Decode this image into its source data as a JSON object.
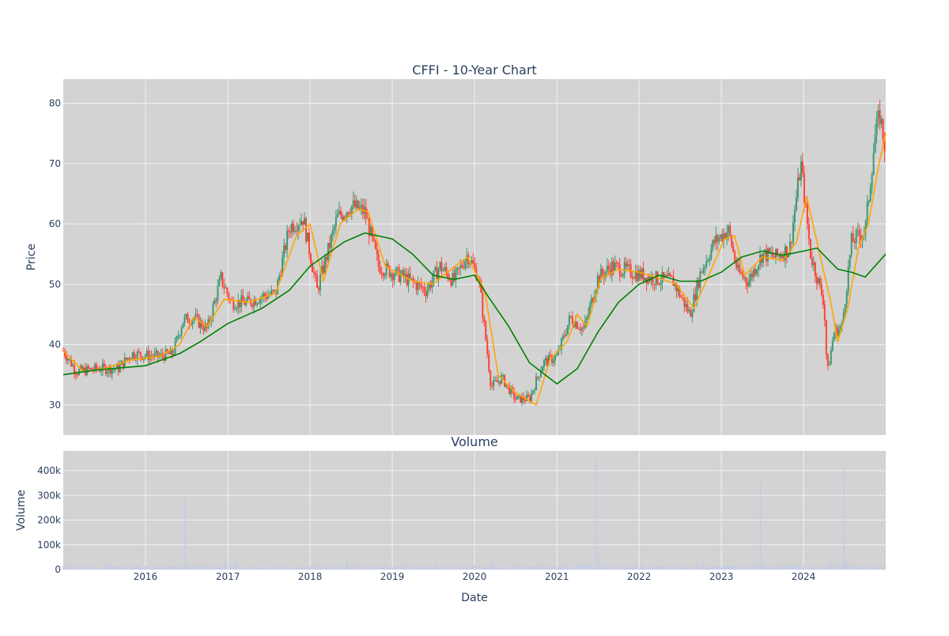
{
  "colors": {
    "plot_bg": "#d3d3d3",
    "grid": "#eef1f6",
    "up": "#3d9970",
    "down": "#ff4136",
    "sma_short": "#ffa500",
    "sma_long": "#008000",
    "volume": "#c5cbe6",
    "text": "#2a3f5f"
  },
  "chart_data": [
    {
      "id": "price",
      "type": "candlestick",
      "title": "CFFI - 10-Year Chart",
      "xlabel": "",
      "ylabel": "Price",
      "xlim": [
        "2015-01-01",
        "2024-12-31"
      ],
      "ylim": [
        25,
        84
      ],
      "yticks": [
        30,
        40,
        50,
        60,
        70,
        80
      ],
      "grid": true,
      "legend": "none",
      "price_path": [
        [
          "2015-01-01",
          39
        ],
        [
          "2015-03-01",
          35.5
        ],
        [
          "2015-06-01",
          36
        ],
        [
          "2015-09-01",
          36
        ],
        [
          "2015-11-01",
          38.5
        ],
        [
          "2016-03-01",
          38
        ],
        [
          "2016-05-01",
          38.5
        ],
        [
          "2016-06-15",
          44
        ],
        [
          "2016-08-01",
          44.5
        ],
        [
          "2016-10-01",
          42.5
        ],
        [
          "2016-12-01",
          51
        ],
        [
          "2017-01-15",
          47
        ],
        [
          "2017-04-01",
          47
        ],
        [
          "2017-06-01",
          48
        ],
        [
          "2017-08-01",
          48.5
        ],
        [
          "2017-10-01",
          59.5
        ],
        [
          "2017-12-01",
          61
        ],
        [
          "2018-02-01",
          49
        ],
        [
          "2018-05-01",
          61
        ],
        [
          "2018-07-01",
          63
        ],
        [
          "2018-09-01",
          62
        ],
        [
          "2018-11-01",
          53
        ],
        [
          "2019-03-01",
          51
        ],
        [
          "2019-06-01",
          49
        ],
        [
          "2019-08-01",
          53
        ],
        [
          "2019-10-01",
          50.5
        ],
        [
          "2019-12-01",
          55
        ],
        [
          "2020-01-20",
          51
        ],
        [
          "2020-03-15",
          33
        ],
        [
          "2020-05-01",
          34.5
        ],
        [
          "2020-07-01",
          31
        ],
        [
          "2020-09-01",
          31
        ],
        [
          "2020-11-01",
          37
        ],
        [
          "2021-01-01",
          38
        ],
        [
          "2021-03-01",
          44.5
        ],
        [
          "2021-05-01",
          42.5
        ],
        [
          "2021-07-01",
          51
        ],
        [
          "2021-09-01",
          53
        ],
        [
          "2021-12-01",
          52
        ],
        [
          "2022-03-01",
          51
        ],
        [
          "2022-06-01",
          50.5
        ],
        [
          "2022-08-15",
          45
        ],
        [
          "2022-10-01",
          52
        ],
        [
          "2022-12-01",
          57
        ],
        [
          "2023-02-01",
          59
        ],
        [
          "2023-03-15",
          52
        ],
        [
          "2023-05-01",
          50.5
        ],
        [
          "2023-07-01",
          55
        ],
        [
          "2023-09-01",
          54.5
        ],
        [
          "2023-11-01",
          56
        ],
        [
          "2023-12-20",
          70
        ],
        [
          "2024-02-01",
          55
        ],
        [
          "2024-04-01",
          47
        ],
        [
          "2024-04-15",
          35
        ],
        [
          "2024-05-15",
          42
        ],
        [
          "2024-06-20",
          43
        ],
        [
          "2024-08-01",
          57
        ],
        [
          "2024-10-01",
          59
        ],
        [
          "2024-11-15",
          75
        ],
        [
          "2024-12-05",
          78
        ],
        [
          "2024-12-31",
          72
        ]
      ],
      "sma_short": [
        [
          "2015-01-01",
          39
        ],
        [
          "2015-04-01",
          35.5
        ],
        [
          "2015-07-01",
          36
        ],
        [
          "2015-11-01",
          37.5
        ],
        [
          "2016-03-01",
          38
        ],
        [
          "2016-06-01",
          40
        ],
        [
          "2016-08-01",
          44.5
        ],
        [
          "2016-10-01",
          43
        ],
        [
          "2016-12-15",
          47.5
        ],
        [
          "2017-04-01",
          47
        ],
        [
          "2017-08-01",
          48.5
        ],
        [
          "2017-11-01",
          58
        ],
        [
          "2018-01-01",
          60
        ],
        [
          "2018-03-01",
          50.5
        ],
        [
          "2018-05-15",
          60
        ],
        [
          "2018-08-01",
          62.5
        ],
        [
          "2018-09-15",
          62
        ],
        [
          "2018-12-01",
          53
        ],
        [
          "2019-04-01",
          50.5
        ],
        [
          "2019-07-01",
          50
        ],
        [
          "2019-09-01",
          52
        ],
        [
          "2019-12-01",
          54.5
        ],
        [
          "2020-02-15",
          49
        ],
        [
          "2020-04-15",
          35
        ],
        [
          "2020-07-01",
          32
        ],
        [
          "2020-10-01",
          30
        ],
        [
          "2020-12-01",
          37.5
        ],
        [
          "2021-02-15",
          40.5
        ],
        [
          "2021-04-01",
          45
        ],
        [
          "2021-05-15",
          43
        ],
        [
          "2021-07-15",
          51
        ],
        [
          "2021-10-01",
          52.5
        ],
        [
          "2022-01-01",
          52
        ],
        [
          "2022-04-01",
          51
        ],
        [
          "2022-06-15",
          50
        ],
        [
          "2022-09-01",
          46
        ],
        [
          "2022-11-01",
          51
        ],
        [
          "2023-01-15",
          57.5
        ],
        [
          "2023-03-01",
          58
        ],
        [
          "2023-04-15",
          51.5
        ],
        [
          "2023-07-01",
          54.5
        ],
        [
          "2023-10-01",
          54
        ],
        [
          "2023-12-01",
          57
        ],
        [
          "2024-01-15",
          64.5
        ],
        [
          "2024-03-01",
          57
        ],
        [
          "2024-05-01",
          47
        ],
        [
          "2024-06-01",
          40.5
        ],
        [
          "2024-07-15",
          46
        ],
        [
          "2024-09-01",
          56
        ],
        [
          "2024-10-15",
          60
        ],
        [
          "2024-12-01",
          70
        ],
        [
          "2024-12-31",
          75
        ]
      ],
      "sma_long": [
        [
          "2015-01-01",
          35
        ],
        [
          "2015-06-01",
          35.8
        ],
        [
          "2016-01-01",
          36.5
        ],
        [
          "2016-06-01",
          38.5
        ],
        [
          "2016-09-01",
          40.5
        ],
        [
          "2017-01-01",
          43.5
        ],
        [
          "2017-06-01",
          46
        ],
        [
          "2017-10-01",
          49
        ],
        [
          "2018-01-01",
          53
        ],
        [
          "2018-06-01",
          57
        ],
        [
          "2018-09-01",
          58.5
        ],
        [
          "2019-01-01",
          57.5
        ],
        [
          "2019-04-01",
          55
        ],
        [
          "2019-07-01",
          51.5
        ],
        [
          "2019-10-01",
          50.8
        ],
        [
          "2020-01-01",
          51.5
        ],
        [
          "2020-03-01",
          48
        ],
        [
          "2020-06-01",
          43
        ],
        [
          "2020-09-01",
          37
        ],
        [
          "2021-01-01",
          33.5
        ],
        [
          "2021-04-01",
          36
        ],
        [
          "2021-07-01",
          42
        ],
        [
          "2021-10-01",
          47
        ],
        [
          "2022-01-01",
          50
        ],
        [
          "2022-04-01",
          51.5
        ],
        [
          "2022-07-01",
          50.5
        ],
        [
          "2022-10-01",
          50.5
        ],
        [
          "2023-01-01",
          52
        ],
        [
          "2023-04-01",
          54.5
        ],
        [
          "2023-07-01",
          55.5
        ],
        [
          "2023-10-01",
          54.8
        ],
        [
          "2024-01-01",
          55.5
        ],
        [
          "2024-03-01",
          56
        ],
        [
          "2024-06-01",
          52.5
        ],
        [
          "2024-08-01",
          52
        ],
        [
          "2024-10-01",
          51.2
        ],
        [
          "2024-12-31",
          55
        ]
      ]
    },
    {
      "id": "volume",
      "type": "bar",
      "title": "Volume",
      "xlabel": "Date",
      "ylabel": "Volume",
      "xlim": [
        "2015-01-01",
        "2024-12-31"
      ],
      "xticks": [
        "2016",
        "2017",
        "2018",
        "2019",
        "2020",
        "2021",
        "2022",
        "2023",
        "2024"
      ],
      "ylim": [
        0,
        480000
      ],
      "yticks": [
        0,
        100000,
        200000,
        300000,
        400000
      ],
      "ytick_labels": [
        "0",
        "100k",
        "200k",
        "300k",
        "400k"
      ],
      "grid": true,
      "baseline": 10000,
      "spikes": [
        [
          "2016-06-24",
          290000
        ],
        [
          "2021-06-25",
          460000
        ],
        [
          "2023-06-23",
          360000
        ],
        [
          "2024-06-28",
          415000
        ],
        [
          "2016-12-20",
          45000
        ],
        [
          "2017-02-01",
          55000
        ],
        [
          "2018-06-15",
          40000
        ],
        [
          "2020-03-20",
          25000
        ],
        [
          "2021-07-05",
          60000
        ],
        [
          "2022-09-15",
          35000
        ],
        [
          "2024-05-01",
          45000
        ],
        [
          "2024-07-10",
          40000
        ]
      ]
    }
  ]
}
